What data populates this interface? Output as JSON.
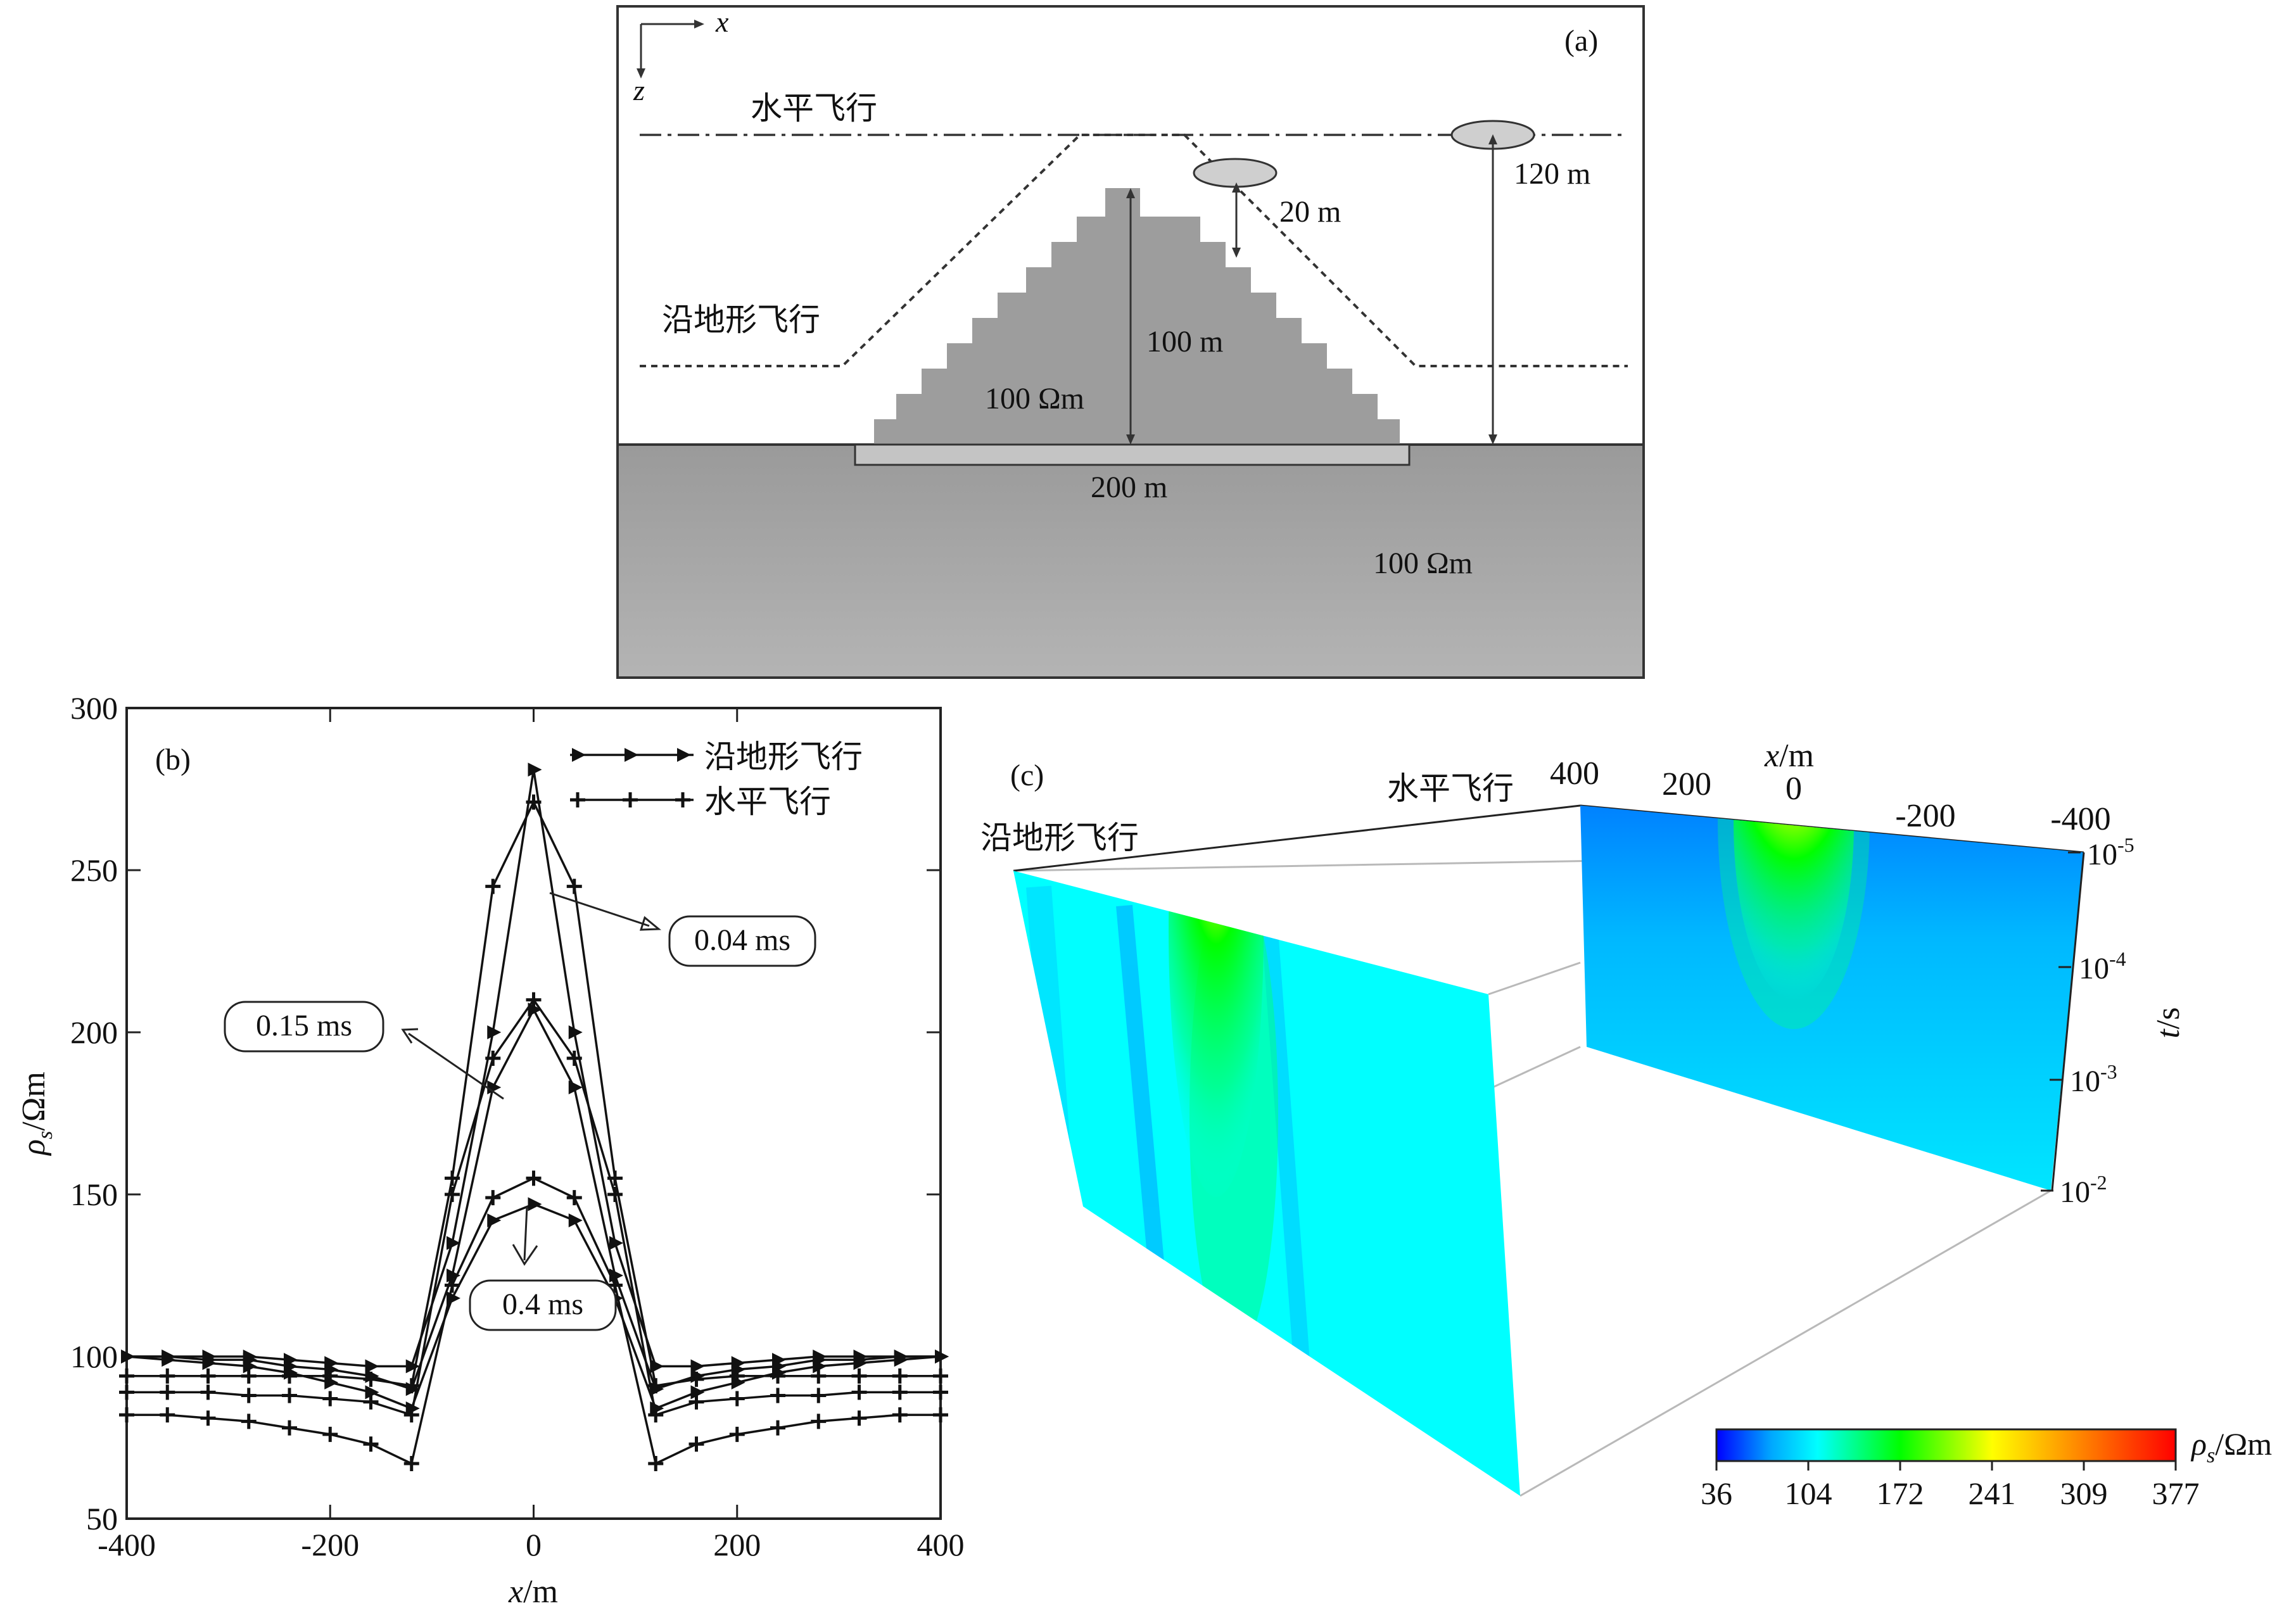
{
  "panel_a": {
    "label": "(a)",
    "axis_x": "x",
    "axis_z": "z",
    "flight_horizontal": "水平飞行",
    "flight_terrain": "沿地形飞行",
    "dim_clearance": "20 m",
    "dim_altitude": "120 m",
    "dim_hill_height": "100 m",
    "hill_resistivity": "100 Ωm",
    "dim_hill_width": "200 m",
    "ground_resistivity": "100 Ωm",
    "colors": {
      "hill": "#9d9d9d",
      "ground": "#a8a8a8",
      "coil": "#cfcfcf"
    }
  },
  "panel_b_label": "(b)",
  "panel_c": {
    "label": "(c)",
    "plane_terrain": "沿地形飞行",
    "plane_horizontal": "水平飞行",
    "x_axis_label": "x/m",
    "x_ticks": [
      "400",
      "200",
      "0",
      "-200",
      "-400"
    ],
    "t_axis_label": "t/s",
    "t_ticks": [
      "10-5",
      "10-4",
      "10-3",
      "10-2"
    ],
    "colorbar_label": "ρs/Ωm",
    "colorbar_ticks": [
      "36",
      "104",
      "172",
      "241",
      "309",
      "377"
    ],
    "colormap": [
      "#0000ff",
      "#00a8ff",
      "#00ffff",
      "#00ff00",
      "#ffff00",
      "#ff8000",
      "#ff0000"
    ]
  },
  "chart_data": {
    "type": "line",
    "xlabel": "x/m",
    "ylabel": "ρs/Ωm",
    "xlim": [
      -400,
      400
    ],
    "ylim": [
      50,
      300
    ],
    "xticks": [
      "-400",
      "-200",
      "0",
      "200",
      "400"
    ],
    "yticks": [
      "50",
      "100",
      "150",
      "200",
      "250",
      "300"
    ],
    "x": [
      -400,
      -360,
      -320,
      -280,
      -240,
      -200,
      -160,
      -120,
      -80,
      -40,
      0,
      40,
      80,
      120,
      160,
      200,
      240,
      280,
      320,
      360,
      400
    ],
    "legend": [
      {
        "name": "沿地形飞行",
        "marker": "triangle"
      },
      {
        "name": "水平飞行",
        "marker": "plus"
      }
    ],
    "series": [
      {
        "marker": "triangle",
        "values": [
          100,
          100,
          100,
          100,
          99,
          98,
          97,
          97,
          135,
          200,
          281,
          200,
          135,
          97,
          97,
          98,
          99,
          100,
          100,
          100,
          100
        ]
      },
      {
        "marker": "triangle",
        "values": [
          100,
          100,
          99,
          99,
          97,
          96,
          94,
          90,
          125,
          183,
          207,
          183,
          125,
          90,
          94,
          96,
          97,
          99,
          99,
          100,
          100
        ]
      },
      {
        "marker": "triangle",
        "values": [
          100,
          99,
          98,
          97,
          95,
          92,
          89,
          84,
          118,
          142,
          147,
          142,
          118,
          84,
          89,
          92,
          95,
          97,
          98,
          99,
          100
        ]
      },
      {
        "marker": "plus",
        "values": [
          94,
          94,
          94,
          94,
          94,
          94,
          93,
          91,
          155,
          245,
          271,
          245,
          155,
          91,
          93,
          94,
          94,
          94,
          94,
          94,
          94
        ]
      },
      {
        "marker": "plus",
        "values": [
          89,
          89,
          89,
          88,
          88,
          87,
          86,
          82,
          150,
          192,
          210,
          192,
          150,
          82,
          86,
          87,
          88,
          88,
          89,
          89,
          89
        ]
      },
      {
        "marker": "plus",
        "values": [
          82,
          82,
          81,
          80,
          78,
          76,
          73,
          67,
          122,
          149,
          155,
          149,
          122,
          67,
          73,
          76,
          78,
          80,
          81,
          82,
          82
        ]
      }
    ],
    "annotations": [
      "0.04 ms",
      "0.15 ms",
      "0.4 ms"
    ]
  }
}
